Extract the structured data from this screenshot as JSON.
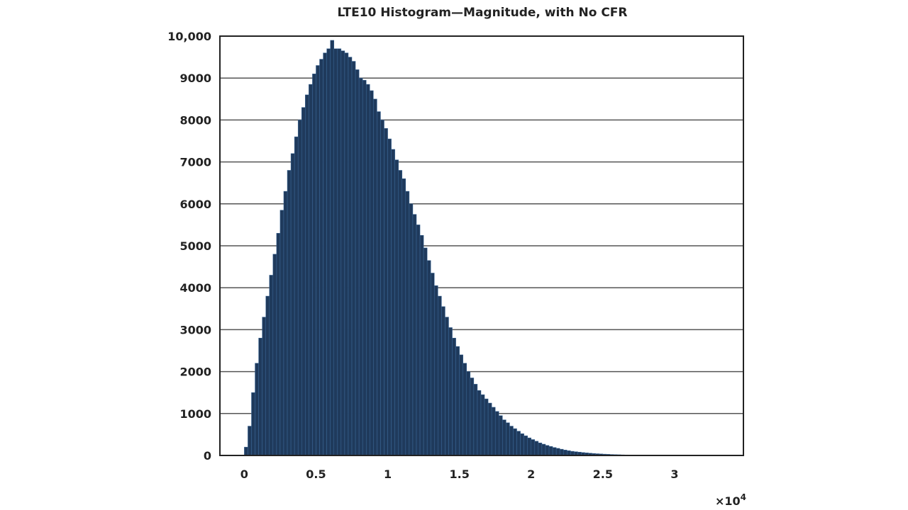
{
  "chart_data": {
    "type": "bar",
    "title": "LTE10 Histogram—Magnitude, with No CFR",
    "xlabel": "",
    "ylabel": "",
    "x_multiplier": "×10",
    "x_multiplier_exp": "4",
    "xlim": [
      -0.17,
      3.48
    ],
    "ylim": [
      0,
      10000
    ],
    "grid": "horizontal",
    "bar_color": "#1f3a5c",
    "bin_width": 0.025,
    "bin_start": 0,
    "xticks": [
      {
        "value": 0,
        "label": "0"
      },
      {
        "value": 0.5,
        "label": "0.5"
      },
      {
        "value": 1,
        "label": "1"
      },
      {
        "value": 1.5,
        "label": "1.5"
      },
      {
        "value": 2,
        "label": "2"
      },
      {
        "value": 2.5,
        "label": "2.5"
      },
      {
        "value": 3,
        "label": "3"
      }
    ],
    "yticks": [
      {
        "value": 0,
        "label": "0"
      },
      {
        "value": 1000,
        "label": "1000"
      },
      {
        "value": 2000,
        "label": "2000"
      },
      {
        "value": 3000,
        "label": "3000"
      },
      {
        "value": 4000,
        "label": "4000"
      },
      {
        "value": 5000,
        "label": "5000"
      },
      {
        "value": 6000,
        "label": "6000"
      },
      {
        "value": 7000,
        "label": "7000"
      },
      {
        "value": 8000,
        "label": "8000"
      },
      {
        "value": 9000,
        "label": "9000"
      },
      {
        "value": 10000,
        "label": "10,000"
      }
    ],
    "values": [
      200,
      700,
      1500,
      2200,
      2800,
      3300,
      3800,
      4300,
      4800,
      5300,
      5850,
      6300,
      6800,
      7200,
      7600,
      8000,
      8300,
      8600,
      8850,
      9100,
      9300,
      9450,
      9600,
      9700,
      9900,
      9700,
      9700,
      9650,
      9600,
      9500,
      9400,
      9200,
      9000,
      8950,
      8850,
      8700,
      8500,
      8200,
      8000,
      7800,
      7550,
      7300,
      7050,
      6800,
      6600,
      6300,
      6000,
      5750,
      5500,
      5250,
      4950,
      4650,
      4350,
      4050,
      3800,
      3550,
      3300,
      3050,
      2800,
      2600,
      2400,
      2200,
      2000,
      1850,
      1700,
      1550,
      1450,
      1350,
      1250,
      1150,
      1050,
      950,
      850,
      780,
      700,
      640,
      580,
      520,
      470,
      420,
      380,
      340,
      300,
      270,
      240,
      215,
      190,
      170,
      150,
      130,
      115,
      100,
      90,
      80,
      70,
      62,
      55,
      48,
      42,
      37,
      32,
      28,
      24,
      21,
      18,
      15,
      13,
      11,
      9,
      8,
      7,
      6,
      5,
      4,
      4,
      3,
      3,
      2,
      2,
      2,
      1,
      1,
      1,
      1,
      1
    ]
  }
}
